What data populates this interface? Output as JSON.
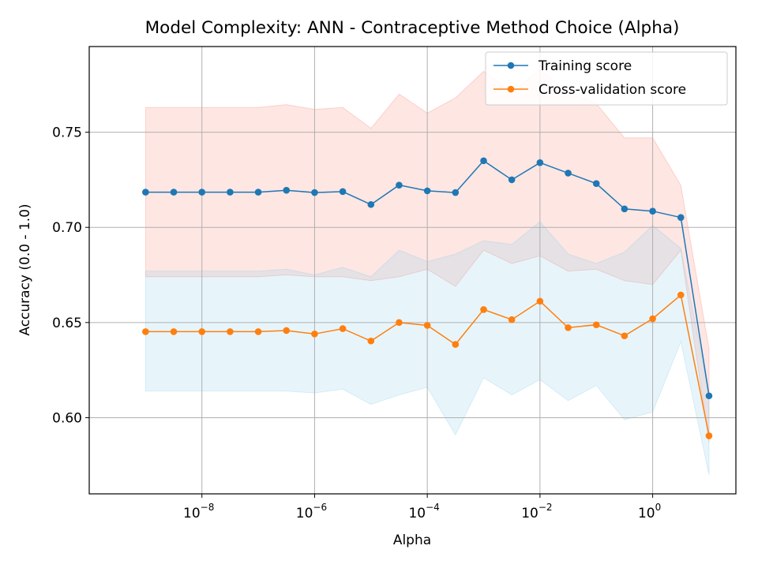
{
  "chart_data": {
    "type": "line",
    "title": "Model Complexity: ANN - Contraceptive Method Choice (Alpha)",
    "xlabel": "Alpha",
    "ylabel": "Accuracy (0.0 - 1.0)",
    "x_scale": "log",
    "x_tick_base": "10",
    "x_tick_exponents": [
      "−8",
      "−6",
      "−4",
      "−2",
      "0"
    ],
    "y_ticks": [
      "0.60",
      "0.65",
      "0.70",
      "0.75"
    ],
    "ylim": [
      0.56,
      0.795
    ],
    "xlim": [
      1e-10,
      30
    ],
    "grid": true,
    "legend_position": "top-right",
    "x": [
      1e-09,
      3.16e-09,
      1e-08,
      3.16e-08,
      1e-07,
      3.16e-07,
      1e-06,
      3.16e-06,
      1e-05,
      3.16e-05,
      0.0001,
      0.000316,
      0.001,
      0.00316,
      0.01,
      0.0316,
      0.1,
      0.316,
      1,
      3.16,
      10
    ],
    "series": [
      {
        "name": "Training score",
        "color": "#1f77b4",
        "band_color": "#fa8072",
        "values": [
          0.7185,
          0.7185,
          0.7185,
          0.7185,
          0.7185,
          0.7195,
          0.7183,
          0.7188,
          0.712,
          0.7222,
          0.7192,
          0.7183,
          0.735,
          0.725,
          0.734,
          0.7285,
          0.723,
          0.7097,
          0.7085,
          0.7052,
          0.6115
        ],
        "upper": [
          0.763,
          0.763,
          0.763,
          0.763,
          0.763,
          0.7645,
          0.762,
          0.763,
          0.752,
          0.77,
          0.76,
          0.768,
          0.782,
          0.771,
          0.783,
          0.771,
          0.765,
          0.747,
          0.747,
          0.722,
          0.636
        ],
        "lower": [
          0.674,
          0.674,
          0.674,
          0.674,
          0.674,
          0.675,
          0.674,
          0.674,
          0.672,
          0.674,
          0.678,
          0.669,
          0.688,
          0.681,
          0.685,
          0.677,
          0.678,
          0.672,
          0.67,
          0.688,
          0.587
        ]
      },
      {
        "name": "Cross-validation score",
        "color": "#ff7f0e",
        "band_color": "#87ceeb",
        "values": [
          0.6452,
          0.6452,
          0.6452,
          0.6452,
          0.6452,
          0.6458,
          0.644,
          0.6468,
          0.6403,
          0.65,
          0.6485,
          0.6385,
          0.6568,
          0.6515,
          0.6612,
          0.6473,
          0.6488,
          0.643,
          0.652,
          0.6645,
          0.5905
        ],
        "upper": [
          0.677,
          0.677,
          0.677,
          0.677,
          0.677,
          0.678,
          0.675,
          0.679,
          0.674,
          0.688,
          0.682,
          0.686,
          0.693,
          0.691,
          0.703,
          0.686,
          0.681,
          0.687,
          0.701,
          0.689,
          0.612
        ],
        "lower": [
          0.614,
          0.614,
          0.614,
          0.614,
          0.614,
          0.614,
          0.613,
          0.615,
          0.607,
          0.612,
          0.616,
          0.591,
          0.621,
          0.612,
          0.62,
          0.609,
          0.617,
          0.599,
          0.603,
          0.64,
          0.57
        ]
      }
    ]
  }
}
